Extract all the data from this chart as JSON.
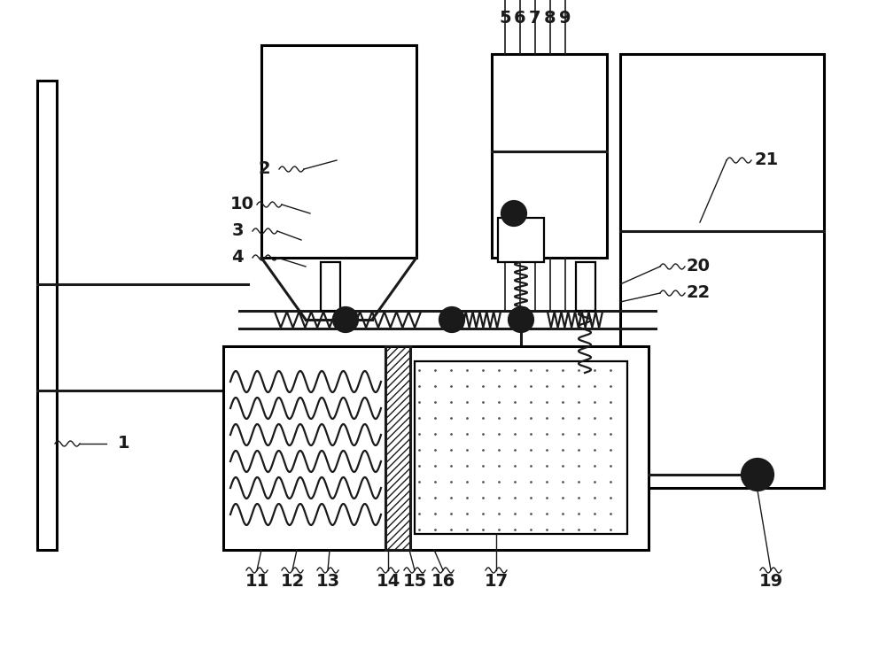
{
  "bg_color": "#ffffff",
  "line_color": "#000000",
  "fig_width": 10.0,
  "fig_height": 7.51
}
